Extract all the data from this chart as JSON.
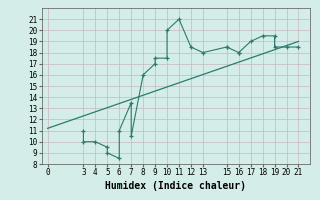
{
  "xlabel": "Humidex (Indice chaleur)",
  "x_data": [
    3,
    3,
    4,
    5,
    5,
    6,
    6,
    7,
    7,
    8,
    9,
    9,
    10,
    10,
    11,
    12,
    13,
    15,
    15,
    16,
    16,
    17,
    18,
    19,
    19,
    20,
    21
  ],
  "y_data": [
    11,
    10,
    10,
    9.5,
    9,
    8.5,
    11,
    13.5,
    10.5,
    16,
    17,
    17.5,
    17.5,
    20,
    21,
    18.5,
    18,
    18.5,
    18.5,
    18,
    18,
    19,
    19.5,
    19.5,
    18.5,
    18.5,
    18.5
  ],
  "trend_x": [
    0,
    21
  ],
  "trend_y": [
    11.2,
    19.0
  ],
  "line_color": "#2a7a6f",
  "bg_color": "#d4ede8",
  "grid_color": "#c8b8c0",
  "xlim": [
    -0.5,
    22
  ],
  "ylim": [
    8,
    22
  ],
  "xticks": [
    0,
    3,
    4,
    5,
    6,
    7,
    8,
    9,
    10,
    11,
    12,
    13,
    15,
    16,
    17,
    18,
    19,
    20,
    21
  ],
  "yticks": [
    8,
    9,
    10,
    11,
    12,
    13,
    14,
    15,
    16,
    17,
    18,
    19,
    20,
    21
  ],
  "tick_fontsize": 5.5,
  "label_fontsize": 7
}
